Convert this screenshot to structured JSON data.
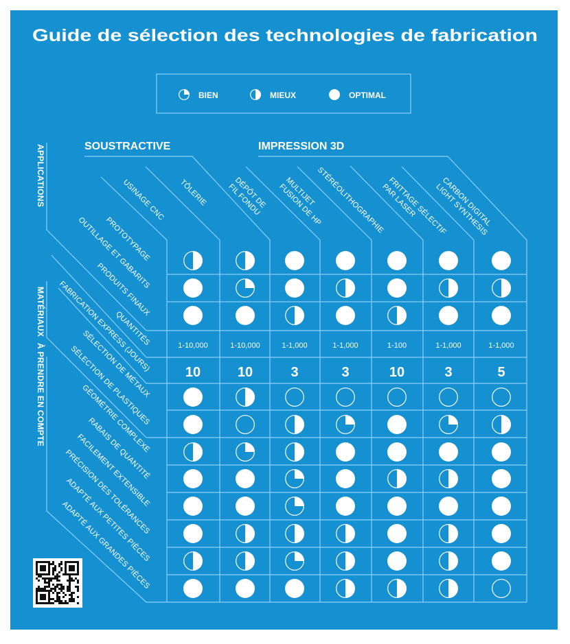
{
  "title": "Guide de sélection des technologies de fabrication",
  "colors": {
    "background": "#1590d0",
    "line": "#8fd0f5",
    "symbol": "#ffffff"
  },
  "legend": [
    {
      "label": "BIEN",
      "level": 1
    },
    {
      "label": "MIEUX",
      "level": 2
    },
    {
      "label": "OPTIMAL",
      "level": 3
    }
  ],
  "groups": {
    "subtractive": "SOUSTRACTIVE",
    "printing": "IMPRESSION 3D"
  },
  "sections": {
    "applications": "APPLICATIONS",
    "materials": "MATÉRIAUX",
    "considerations": "À PRENDRE EN COMPTE"
  },
  "columns": [
    {
      "lines": [
        "USINAGE CNC"
      ]
    },
    {
      "lines": [
        "TÔLERIE"
      ]
    },
    {
      "lines": [
        "DÉPÔT DE",
        "FIL FONDU"
      ]
    },
    {
      "lines": [
        "MULTIJET",
        "FUSION DE HP"
      ]
    },
    {
      "lines": [
        "STÉRÉOLITHOGRAPHIE"
      ]
    },
    {
      "lines": [
        "FRITTAGE SÉLECTIF",
        "PAR LASER"
      ]
    },
    {
      "lines": [
        "CARBON DIGITAL",
        "LIGHT SYNTHESIS"
      ]
    }
  ],
  "rows": [
    {
      "label": "PROTOTYPAGE",
      "type": "rating",
      "values": [
        2,
        2,
        3,
        3,
        3,
        3,
        3
      ]
    },
    {
      "label": "OUTILLAGE ET GABARITS",
      "type": "rating",
      "values": [
        3,
        1,
        3,
        2,
        3,
        2,
        2
      ]
    },
    {
      "label": "PRODUITS FINAUX",
      "type": "rating",
      "values": [
        3,
        3,
        2,
        3,
        2,
        3,
        3
      ]
    },
    {
      "label": "QUANTITÉS",
      "type": "quantity",
      "values": [
        "1-10,000",
        "1-10,000",
        "1-1,000",
        "1-1,000",
        "1-100",
        "1-1,000",
        "1-1,000"
      ]
    },
    {
      "label": "FABRICATION EXPRESS (JOURS)",
      "type": "days",
      "values": [
        "10",
        "10",
        "3",
        "3",
        "10",
        "3",
        "5"
      ]
    },
    {
      "label": "SÉLECTION DE MÉTAUX",
      "type": "rating",
      "values": [
        3,
        2,
        0,
        0,
        0,
        0,
        0
      ]
    },
    {
      "label": "SÉLECTION DE PLASTIQUES",
      "type": "rating",
      "values": [
        3,
        0,
        2,
        1,
        3,
        1,
        2
      ]
    },
    {
      "label": "GÉOMÉTRIE COMPLEXE",
      "type": "rating",
      "values": [
        2,
        1,
        2,
        3,
        3,
        3,
        3
      ]
    },
    {
      "label": "RABAIS DE QUANTITÉ",
      "type": "rating",
      "values": [
        3,
        3,
        1,
        3,
        2,
        2,
        3
      ]
    },
    {
      "label": "FACILEMENT EXTENSIBLE",
      "type": "rating",
      "values": [
        3,
        3,
        1,
        3,
        3,
        3,
        3
      ]
    },
    {
      "label": "PRÉCISION DES TOLÉRANCES",
      "type": "rating",
      "values": [
        3,
        2,
        2,
        2,
        3,
        2,
        3
      ]
    },
    {
      "label": "ADAPTÉ AUX PETITES PIÈCES",
      "type": "rating",
      "values": [
        2,
        2,
        1,
        2,
        3,
        2,
        3
      ]
    },
    {
      "label": "ADAPTÉ AUX GRANDES PIÈCES",
      "type": "rating",
      "values": [
        3,
        3,
        3,
        2,
        2,
        2,
        0
      ]
    }
  ]
}
